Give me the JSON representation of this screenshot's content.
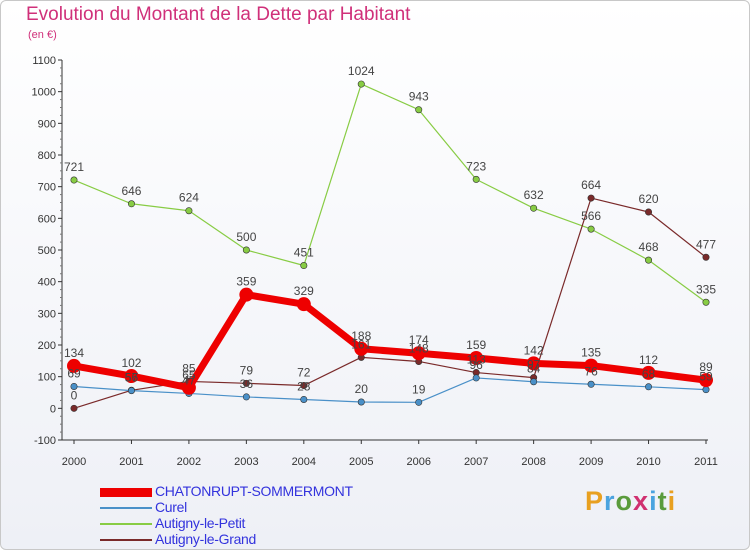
{
  "title": "Evolution du Montant de la Dette par Habitant",
  "subtitle": "(en €)",
  "logo": {
    "text": "Proxiti",
    "letter_colors": [
      "#e8a020",
      "#4aa3df",
      "#5a9b3c",
      "#d03070",
      "#4aa3df",
      "#5a9b3c",
      "#e8a020"
    ]
  },
  "chart_data": {
    "type": "line",
    "title": "Evolution du Montant de la Dette par Habitant",
    "subtitle": "(en €)",
    "x": [
      "2000",
      "2001",
      "2002",
      "2003",
      "2004",
      "2005",
      "2006",
      "2007",
      "2008",
      "2009",
      "2010",
      "2011"
    ],
    "ylim": [
      -100,
      1100
    ],
    "yticks": [
      -100,
      0,
      100,
      200,
      300,
      400,
      500,
      600,
      700,
      800,
      900,
      1000,
      1100
    ],
    "grid": false,
    "legend_position": "bottom-left",
    "series": [
      {
        "name": "CHATONRUPT-SOMMERMONT",
        "color": "#ee0000",
        "values": [
          134,
          102,
          65,
          359,
          329,
          188,
          174,
          159,
          142,
          135,
          112,
          89
        ]
      },
      {
        "name": "Curel",
        "color": "#4a90c8",
        "values": [
          69,
          56,
          47,
          36,
          28,
          20,
          19,
          96,
          84,
          76,
          68,
          59
        ]
      },
      {
        "name": "Autigny-le-Petit",
        "color": "#88cc44",
        "values": [
          721,
          646,
          624,
          500,
          451,
          1024,
          943,
          723,
          632,
          566,
          468,
          335
        ]
      },
      {
        "name": "Autigny-le-Grand",
        "color": "#7a2a2a",
        "values": [
          0,
          57,
          85,
          79,
          72,
          161,
          148,
          113,
          97,
          664,
          620,
          477
        ]
      }
    ]
  }
}
